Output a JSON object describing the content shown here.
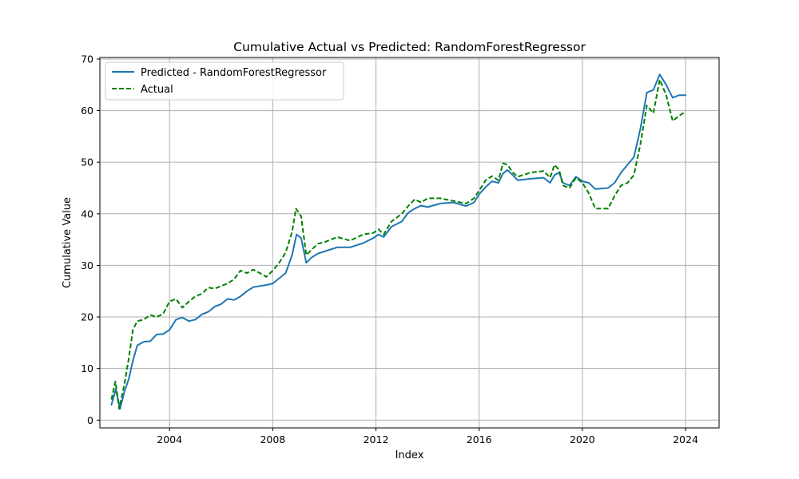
{
  "chart_data": {
    "type": "line",
    "title": "Cumulative Actual vs Predicted: RandomForestRegressor",
    "xlabel": "Index",
    "ylabel": "Cumulative Value",
    "xlim": [
      2001.3,
      2025.3
    ],
    "ylim": [
      -1.5,
      70.3
    ],
    "xticks": [
      2004,
      2008,
      2012,
      2016,
      2020,
      2024
    ],
    "yticks": [
      0,
      10,
      20,
      30,
      40,
      50,
      60,
      70
    ],
    "grid": true,
    "legend_position": "top-left",
    "series": [
      {
        "name": "Predicted - RandomForestRegressor",
        "color": "#1f77b4",
        "style": "solid",
        "points": [
          [
            2001.75,
            3.0
          ],
          [
            2001.92,
            6.0
          ],
          [
            2002.08,
            2.2
          ],
          [
            2002.25,
            5.5
          ],
          [
            2002.42,
            8.0
          ],
          [
            2002.58,
            11.5
          ],
          [
            2002.75,
            14.5
          ],
          [
            2003.0,
            15.2
          ],
          [
            2003.25,
            15.3
          ],
          [
            2003.5,
            16.6
          ],
          [
            2003.75,
            16.7
          ],
          [
            2004.0,
            17.5
          ],
          [
            2004.25,
            19.5
          ],
          [
            2004.5,
            19.9
          ],
          [
            2004.75,
            19.2
          ],
          [
            2005.0,
            19.5
          ],
          [
            2005.25,
            20.5
          ],
          [
            2005.5,
            21.0
          ],
          [
            2005.75,
            22.0
          ],
          [
            2006.0,
            22.5
          ],
          [
            2006.25,
            23.5
          ],
          [
            2006.5,
            23.3
          ],
          [
            2006.75,
            24.0
          ],
          [
            2007.0,
            25.0
          ],
          [
            2007.25,
            25.8
          ],
          [
            2007.5,
            26.0
          ],
          [
            2007.75,
            26.2
          ],
          [
            2008.0,
            26.5
          ],
          [
            2008.25,
            27.5
          ],
          [
            2008.5,
            28.5
          ],
          [
            2008.75,
            32.0
          ],
          [
            2008.92,
            36.0
          ],
          [
            2009.1,
            35.3
          ],
          [
            2009.3,
            30.5
          ],
          [
            2009.5,
            31.5
          ],
          [
            2009.75,
            32.3
          ],
          [
            2010.0,
            32.7
          ],
          [
            2010.5,
            33.5
          ],
          [
            2011.0,
            33.5
          ],
          [
            2011.5,
            34.3
          ],
          [
            2011.9,
            35.3
          ],
          [
            2012.1,
            36.0
          ],
          [
            2012.3,
            35.5
          ],
          [
            2012.6,
            37.5
          ],
          [
            2013.0,
            38.5
          ],
          [
            2013.25,
            40.2
          ],
          [
            2013.5,
            41.0
          ],
          [
            2013.75,
            41.6
          ],
          [
            2014.0,
            41.3
          ],
          [
            2014.5,
            42.0
          ],
          [
            2015.0,
            42.2
          ],
          [
            2015.5,
            41.5
          ],
          [
            2015.8,
            42.2
          ],
          [
            2016.0,
            43.8
          ],
          [
            2016.25,
            45.2
          ],
          [
            2016.5,
            46.3
          ],
          [
            2016.75,
            46.0
          ],
          [
            2016.92,
            47.8
          ],
          [
            2017.1,
            48.5
          ],
          [
            2017.3,
            47.5
          ],
          [
            2017.5,
            46.5
          ],
          [
            2018.0,
            46.8
          ],
          [
            2018.5,
            47.0
          ],
          [
            2018.75,
            46.0
          ],
          [
            2018.92,
            47.5
          ],
          [
            2019.1,
            48.0
          ],
          [
            2019.25,
            46.0
          ],
          [
            2019.5,
            45.5
          ],
          [
            2019.75,
            47.2
          ],
          [
            2020.0,
            46.3
          ],
          [
            2020.25,
            46.0
          ],
          [
            2020.5,
            44.8
          ],
          [
            2021.0,
            45.0
          ],
          [
            2021.25,
            46.0
          ],
          [
            2021.5,
            48.0
          ],
          [
            2021.75,
            49.5
          ],
          [
            2022.0,
            51.0
          ],
          [
            2022.25,
            56.5
          ],
          [
            2022.5,
            63.5
          ],
          [
            2022.75,
            64.0
          ],
          [
            2023.0,
            67.0
          ],
          [
            2023.25,
            65.0
          ],
          [
            2023.5,
            62.5
          ],
          [
            2023.75,
            63.0
          ],
          [
            2024.0,
            63.0
          ]
        ]
      },
      {
        "name": "Actual",
        "color": "#008000",
        "style": "dashed",
        "points": [
          [
            2001.75,
            4.0
          ],
          [
            2001.9,
            7.5
          ],
          [
            2002.05,
            2.2
          ],
          [
            2002.25,
            7.0
          ],
          [
            2002.42,
            12.0
          ],
          [
            2002.58,
            17.5
          ],
          [
            2002.75,
            19.2
          ],
          [
            2003.0,
            19.5
          ],
          [
            2003.25,
            20.4
          ],
          [
            2003.5,
            20.0
          ],
          [
            2003.75,
            20.6
          ],
          [
            2004.0,
            23.0
          ],
          [
            2004.25,
            23.5
          ],
          [
            2004.5,
            21.8
          ],
          [
            2004.75,
            23.0
          ],
          [
            2005.0,
            24.0
          ],
          [
            2005.25,
            24.5
          ],
          [
            2005.5,
            25.7
          ],
          [
            2005.75,
            25.5
          ],
          [
            2006.0,
            26.0
          ],
          [
            2006.25,
            26.5
          ],
          [
            2006.5,
            27.3
          ],
          [
            2006.75,
            29.0
          ],
          [
            2007.0,
            28.5
          ],
          [
            2007.25,
            29.2
          ],
          [
            2007.5,
            28.5
          ],
          [
            2007.75,
            27.8
          ],
          [
            2008.0,
            29.0
          ],
          [
            2008.25,
            30.5
          ],
          [
            2008.5,
            32.5
          ],
          [
            2008.75,
            36.5
          ],
          [
            2008.9,
            41.0
          ],
          [
            2009.1,
            39.5
          ],
          [
            2009.3,
            32.0
          ],
          [
            2009.5,
            33.0
          ],
          [
            2009.75,
            34.2
          ],
          [
            2010.0,
            34.5
          ],
          [
            2010.5,
            35.5
          ],
          [
            2011.0,
            34.8
          ],
          [
            2011.5,
            36.0
          ],
          [
            2011.9,
            36.3
          ],
          [
            2012.1,
            37.0
          ],
          [
            2012.3,
            36.0
          ],
          [
            2012.6,
            38.5
          ],
          [
            2013.0,
            40.0
          ],
          [
            2013.25,
            41.5
          ],
          [
            2013.5,
            42.8
          ],
          [
            2013.75,
            42.2
          ],
          [
            2014.0,
            43.0
          ],
          [
            2014.5,
            43.0
          ],
          [
            2015.0,
            42.5
          ],
          [
            2015.5,
            42.0
          ],
          [
            2015.8,
            43.0
          ],
          [
            2016.0,
            44.5
          ],
          [
            2016.25,
            46.5
          ],
          [
            2016.5,
            47.3
          ],
          [
            2016.75,
            46.5
          ],
          [
            2016.92,
            49.8
          ],
          [
            2017.1,
            49.5
          ],
          [
            2017.3,
            48.0
          ],
          [
            2017.5,
            47.2
          ],
          [
            2018.0,
            48.0
          ],
          [
            2018.5,
            48.3
          ],
          [
            2018.75,
            47.0
          ],
          [
            2018.92,
            49.5
          ],
          [
            2019.1,
            48.5
          ],
          [
            2019.25,
            45.5
          ],
          [
            2019.5,
            45.0
          ],
          [
            2019.75,
            47.0
          ],
          [
            2020.0,
            46.0
          ],
          [
            2020.25,
            44.0
          ],
          [
            2020.5,
            41.0
          ],
          [
            2021.0,
            41.0
          ],
          [
            2021.25,
            43.5
          ],
          [
            2021.5,
            45.5
          ],
          [
            2021.75,
            46.0
          ],
          [
            2022.0,
            47.5
          ],
          [
            2022.25,
            53.5
          ],
          [
            2022.5,
            61.0
          ],
          [
            2022.75,
            59.5
          ],
          [
            2023.0,
            66.0
          ],
          [
            2023.25,
            63.0
          ],
          [
            2023.5,
            58.0
          ],
          [
            2023.75,
            59.0
          ],
          [
            2024.0,
            59.8
          ]
        ]
      }
    ]
  }
}
